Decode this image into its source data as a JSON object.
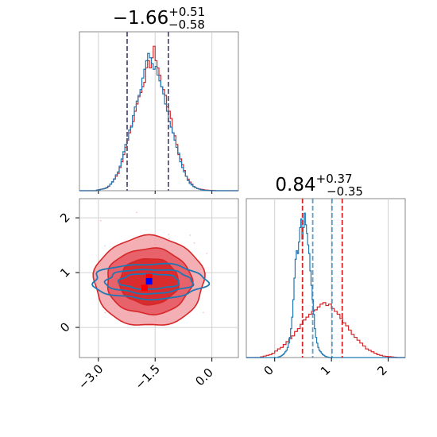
{
  "chart_data": [
    {
      "type": "histogram",
      "panel": "top-left",
      "title": {
        "main": "−1.66",
        "sup": "+0.51",
        "sub": "−0.58"
      },
      "xlim": [
        -3.5,
        0.7
      ],
      "ylim": [
        0,
        1.1
      ],
      "grid": true,
      "quantile_lines": [
        {
          "series": "red",
          "values": [
            -2.24,
            -1.15
          ]
        },
        {
          "series": "blue",
          "values": [
            -2.24,
            -1.15
          ]
        }
      ],
      "series": [
        {
          "name": "",
          "color": "#d62728",
          "x_start": -3.5,
          "bin_width": 0.05,
          "values": [
            0,
            0,
            0,
            0,
            0,
            0,
            0,
            0,
            0,
            0.005,
            0.008,
            0.01,
            0.012,
            0.015,
            0.02,
            0.03,
            0.045,
            0.06,
            0.08,
            0.1,
            0.12,
            0.16,
            0.2,
            0.25,
            0.3,
            0.35,
            0.4,
            0.45,
            0.48,
            0.55,
            0.6,
            0.65,
            0.68,
            0.72,
            0.75,
            0.85,
            0.9,
            0.85,
            0.92,
            1.0,
            0.9,
            0.85,
            0.8,
            0.72,
            0.7,
            0.66,
            0.58,
            0.55,
            0.5,
            0.4,
            0.38,
            0.32,
            0.25,
            0.22,
            0.18,
            0.14,
            0.1,
            0.08,
            0.06,
            0.045,
            0.03,
            0.02,
            0.015,
            0.012,
            0.01,
            0.008,
            0.005,
            0.004,
            0.003,
            0.002,
            0.002,
            0.001,
            0,
            0,
            0,
            0,
            0,
            0,
            0,
            0,
            0,
            0,
            0,
            0
          ]
        },
        {
          "name": "",
          "color": "#1f77b4",
          "x_start": -3.5,
          "bin_width": 0.05,
          "values": [
            0,
            0,
            0,
            0,
            0,
            0,
            0,
            0,
            0,
            0.004,
            0.006,
            0.01,
            0.012,
            0.016,
            0.022,
            0.032,
            0.045,
            0.062,
            0.082,
            0.11,
            0.13,
            0.17,
            0.22,
            0.27,
            0.32,
            0.36,
            0.42,
            0.44,
            0.52,
            0.58,
            0.62,
            0.66,
            0.7,
            0.78,
            0.84,
            0.9,
            0.95,
            0.92,
            0.88,
            0.84,
            0.86,
            0.8,
            0.76,
            0.72,
            0.67,
            0.6,
            0.55,
            0.48,
            0.44,
            0.4,
            0.35,
            0.3,
            0.26,
            0.2,
            0.16,
            0.13,
            0.1,
            0.07,
            0.05,
            0.04,
            0.028,
            0.02,
            0.014,
            0.01,
            0.007,
            0.005,
            0.003,
            0.002,
            0.001,
            0,
            0,
            0,
            0,
            0,
            0,
            0,
            0,
            0,
            0,
            0,
            0,
            0,
            0,
            0
          ]
        }
      ]
    },
    {
      "type": "histogram",
      "panel": "bottom-right",
      "title": {
        "main": "0.84",
        "sup": "+0.37",
        "sub": "−0.35"
      },
      "xlim": [
        -0.5,
        2.3
      ],
      "ylim": [
        0,
        1.1
      ],
      "xticks": [
        0,
        1,
        2
      ],
      "grid": true,
      "quantile_lines": [
        {
          "series": "red",
          "values": [
            0.49,
            1.19
          ]
        },
        {
          "series": "blue",
          "values": [
            0.67,
            1.01
          ]
        }
      ],
      "series": [
        {
          "name": "",
          "color": "#d62728",
          "x_start": -0.5,
          "bin_width": 0.05,
          "values": [
            0,
            0,
            0,
            0,
            0,
            0.005,
            0.01,
            0.015,
            0.02,
            0.03,
            0.045,
            0.06,
            0.07,
            0.09,
            0.11,
            0.13,
            0.15,
            0.18,
            0.2,
            0.23,
            0.26,
            0.28,
            0.3,
            0.32,
            0.33,
            0.35,
            0.37,
            0.38,
            0.36,
            0.37,
            0.34,
            0.32,
            0.3,
            0.27,
            0.24,
            0.22,
            0.19,
            0.16,
            0.14,
            0.12,
            0.1,
            0.08,
            0.06,
            0.05,
            0.04,
            0.03,
            0.02,
            0.015,
            0.01,
            0.008,
            0.006,
            0.004,
            0.002,
            0,
            0,
            0
          ]
        },
        {
          "name": "",
          "color": "#1f77b4",
          "x_start": -0.5,
          "bin_width": 0.02,
          "values": [
            0,
            0,
            0,
            0,
            0,
            0,
            0,
            0,
            0,
            0,
            0,
            0,
            0,
            0,
            0,
            0,
            0,
            0,
            0,
            0,
            0,
            0,
            0,
            0,
            0,
            0,
            0,
            0,
            0.004,
            0.006,
            0.01,
            0.015,
            0.02,
            0.03,
            0.04,
            0.05,
            0.07,
            0.1,
            0.14,
            0.2,
            0.28,
            0.4,
            0.55,
            0.68,
            0.74,
            0.72,
            0.8,
            0.9,
            0.96,
            0.82,
            0.9,
            1.0,
            0.92,
            0.86,
            0.78,
            0.72,
            0.6,
            0.5,
            0.4,
            0.3,
            0.2,
            0.14,
            0.1,
            0.07,
            0.05,
            0.04,
            0.03,
            0.02,
            0.015,
            0.01,
            0.006,
            0.004,
            0.002,
            0,
            0,
            0,
            0,
            0,
            0,
            0,
            0,
            0,
            0,
            0,
            0,
            0,
            0,
            0,
            0,
            0,
            0,
            0,
            0,
            0,
            0,
            0,
            0,
            0,
            0,
            0,
            0,
            0,
            0,
            0,
            0,
            0,
            0,
            0,
            0,
            0,
            0,
            0,
            0,
            0,
            0,
            0,
            0,
            0,
            0,
            0,
            0,
            0,
            0,
            0,
            0,
            0,
            0,
            0,
            0,
            0,
            0,
            0,
            0,
            0,
            0,
            0,
            0,
            0,
            0,
            0,
            0,
            0,
            0,
            0,
            0,
            0
          ]
        }
      ]
    },
    {
      "type": "contour",
      "panel": "bottom-left",
      "xlim": [
        -3.5,
        0.7
      ],
      "ylim": [
        -0.55,
        2.35
      ],
      "xticks": [
        -3.0,
        -1.5,
        0.0
      ],
      "yticks": [
        0,
        1,
        2
      ],
      "xtick_labels": [
        "−3.0",
        "−1.5",
        "0.0"
      ],
      "ytick_labels": [
        "0",
        "1",
        "2"
      ],
      "grid": true,
      "series": [
        {
          "name": "",
          "color": "#d62728",
          "filled": true,
          "center": [
            -1.66,
            0.84
          ],
          "levels": [
            {
              "rx": 1.45,
              "ry": 0.82
            },
            {
              "rx": 1.12,
              "ry": 0.6
            },
            {
              "rx": 0.78,
              "ry": 0.42
            }
          ],
          "marker": [
            -1.66,
            0.92
          ],
          "marker2": [
            -1.78,
            0.72
          ]
        },
        {
          "name": "",
          "color": "#1f77b4",
          "filled": false,
          "center": [
            -1.66,
            0.84
          ],
          "levels": [
            {
              "rx": 1.5,
              "ry": 0.32
            },
            {
              "rx": 1.15,
              "ry": 0.22
            },
            {
              "rx": 0.8,
              "ry": 0.14
            }
          ],
          "marker": [
            -1.66,
            0.84
          ]
        }
      ]
    }
  ]
}
